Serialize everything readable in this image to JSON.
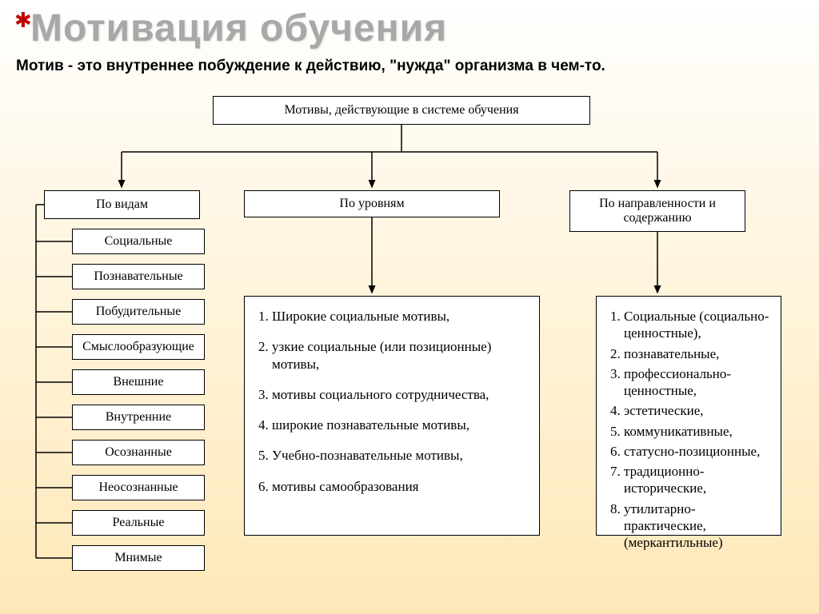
{
  "title": "Мотивация обучения",
  "subtitle": "Мотив - это внутреннее побуждение к действию, \"нужда\" организма в чем-то.",
  "root": "Мотивы, действующие в системе обучения",
  "categories": {
    "c1": "По видам",
    "c2": "По уровням",
    "c3": "По направленности и содержанию"
  },
  "leaves": [
    "Социальные",
    "Познавательные",
    "Побудительные",
    "Смыслообразующие",
    "Внешние",
    "Внутренние",
    "Осознанные",
    "Неосознанные",
    "Реальные",
    "Мнимые"
  ],
  "levels": [
    "Широкие социальные мотивы,",
    "узкие социальные (или позиционные) мотивы,",
    "мотивы социального сотрудничества,",
    "широкие познавательные мотивы,",
    "Учебно-познавательные мотивы,",
    "мотивы самообразования"
  ],
  "directions": [
    "Социальные (социально-ценностные),",
    "познавательные,",
    "профессионально-ценностные,",
    "эстетические,",
    "коммуникативные,",
    "статусно-позиционные,",
    "традиционно-исторические,",
    "утилитарно-практические, (меркантильные)"
  ],
  "style": {
    "title_color": "#a8a8a8",
    "star_color": "#c00000",
    "bg_gradient_top": "#ffffff",
    "bg_gradient_bottom": "#ffe8b8",
    "border_color": "#000000",
    "text_color": "#000000",
    "title_fontsize": 48,
    "subtitle_fontsize": 19,
    "box_fontsize": 16,
    "list_fontsize": 17,
    "leaf_top_start": 286,
    "leaf_top_step": 44
  }
}
